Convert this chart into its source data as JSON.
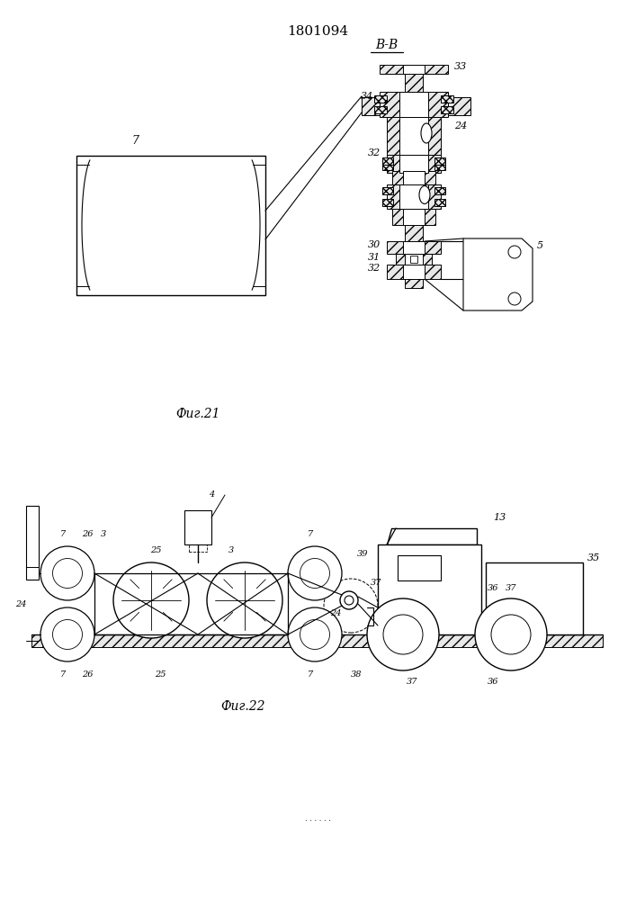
{
  "title": "1801094",
  "fig21_label": "Фиг.21",
  "fig22_label": "Фиг.22",
  "vv_label": "В-В",
  "bg_color": "#ffffff",
  "line_color": "#000000"
}
